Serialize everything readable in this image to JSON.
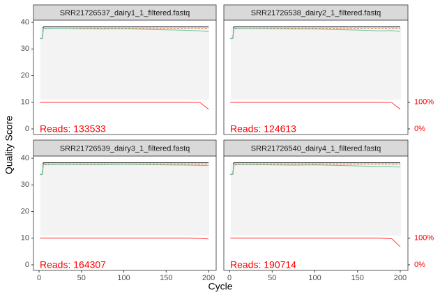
{
  "chart_data": {
    "type": "line",
    "xlabel": "Cycle",
    "ylabel": "Quality Score",
    "x": [
      1,
      4,
      5,
      10,
      25,
      50,
      75,
      100,
      125,
      150,
      175,
      190,
      200
    ],
    "xlim": [
      -6.6,
      209
    ],
    "xticks": [
      0,
      50,
      100,
      150,
      200
    ],
    "ylim": [
      -2.1,
      40.8
    ],
    "yticks": [
      0,
      10,
      20,
      30,
      40
    ],
    "y2lim": [
      -21,
      408
    ],
    "y2ticks": [
      {
        "value": 0,
        "label": "0%"
      },
      {
        "value": 100,
        "label": "100%"
      }
    ],
    "y2color": "#ff0000",
    "panels": [
      {
        "title": "SRR21726537_dairy1_1_filtered.fastq",
        "annotation": "Reads:  133533",
        "series": [
          {
            "color": "#000000",
            "values": [
              34,
              34,
              38.3,
              38.3,
              38.3,
              38.3,
              38.3,
              38.3,
              38.3,
              38.3,
              38.3,
              38.3,
              38.3
            ]
          },
          {
            "color": "#e07b39",
            "dashed": true,
            "values": [
              34,
              34,
              37.8,
              37.8,
              37.8,
              37.8,
              37.8,
              37.8,
              37.8,
              37.8,
              37.8,
              37.8,
              37.8
            ]
          },
          {
            "color": "#66c2a5",
            "values": [
              33.8,
              33.9,
              37.6,
              37.7,
              37.8,
              37.6,
              37.5,
              37.6,
              37.4,
              37.2,
              37.0,
              36.8,
              36.5
            ]
          },
          {
            "color": "#ff0000",
            "axis": "y2",
            "values": [
              100,
              100,
              100,
              100,
              100,
              100,
              100,
              100,
              100,
              100,
              100,
              99,
              74
            ]
          }
        ]
      },
      {
        "title": "SRR21726538_dairy2_1_filtered.fastq",
        "annotation": "Reads:  124613",
        "series": [
          {
            "color": "#000000",
            "values": [
              34,
              34,
              38.3,
              38.3,
              38.3,
              38.3,
              38.3,
              38.3,
              38.3,
              38.3,
              38.3,
              38.3,
              38.3
            ]
          },
          {
            "color": "#e07b39",
            "dashed": true,
            "values": [
              34,
              34,
              37.8,
              37.8,
              37.8,
              37.8,
              37.8,
              37.8,
              37.8,
              37.8,
              37.8,
              37.8,
              37.8
            ]
          },
          {
            "color": "#66c2a5",
            "values": [
              33.8,
              33.9,
              37.5,
              37.7,
              37.7,
              37.6,
              37.5,
              37.5,
              37.3,
              37.1,
              36.8,
              36.9,
              36.6
            ]
          },
          {
            "color": "#ff0000",
            "axis": "y2",
            "values": [
              100,
              100,
              100,
              100,
              100,
              100,
              100,
              100,
              100,
              100,
              100,
              99,
              74
            ]
          }
        ]
      },
      {
        "title": "SRR21726539_dairy3_1_filtered.fastq",
        "annotation": "Reads:  164307",
        "series": [
          {
            "color": "#000000",
            "values": [
              34,
              34,
              38.3,
              38.3,
              38.3,
              38.3,
              38.3,
              38.3,
              38.3,
              38.3,
              38.3,
              38.3,
              38.3
            ]
          },
          {
            "color": "#e07b39",
            "dashed": true,
            "values": [
              34,
              34,
              37.8,
              37.8,
              37.8,
              37.8,
              37.8,
              37.8,
              37.8,
              37.8,
              37.8,
              37.8,
              37.8
            ]
          },
          {
            "color": "#66c2a5",
            "values": [
              33.8,
              33.9,
              37.5,
              37.6,
              37.7,
              37.6,
              37.6,
              37.7,
              37.6,
              37.5,
              37.4,
              37.3,
              37.2
            ]
          },
          {
            "color": "#ff0000",
            "axis": "y2",
            "values": [
              100,
              100,
              100,
              100,
              100,
              100,
              100,
              100,
              100,
              100,
              100,
              99,
              97
            ]
          }
        ]
      },
      {
        "title": "SRR21726540_dairy4_1_filtered.fastq",
        "annotation": "Reads:  190714",
        "series": [
          {
            "color": "#000000",
            "values": [
              34,
              34,
              38.3,
              38.3,
              38.3,
              38.3,
              38.3,
              38.3,
              38.3,
              38.3,
              38.3,
              38.3,
              38.3
            ]
          },
          {
            "color": "#e07b39",
            "dashed": true,
            "values": [
              34,
              34,
              37.8,
              37.8,
              37.8,
              37.8,
              37.8,
              37.8,
              37.8,
              37.8,
              37.8,
              37.8,
              37.8
            ]
          },
          {
            "color": "#66c2a5",
            "values": [
              33.8,
              33.9,
              37.4,
              37.6,
              37.6,
              37.5,
              37.4,
              37.5,
              37.3,
              37.1,
              36.9,
              36.9,
              36.7
            ]
          },
          {
            "color": "#ff0000",
            "axis": "y2",
            "values": [
              100,
              100,
              100,
              100,
              100,
              100,
              100,
              100,
              100,
              100,
              100,
              98,
              68
            ]
          }
        ]
      }
    ]
  }
}
